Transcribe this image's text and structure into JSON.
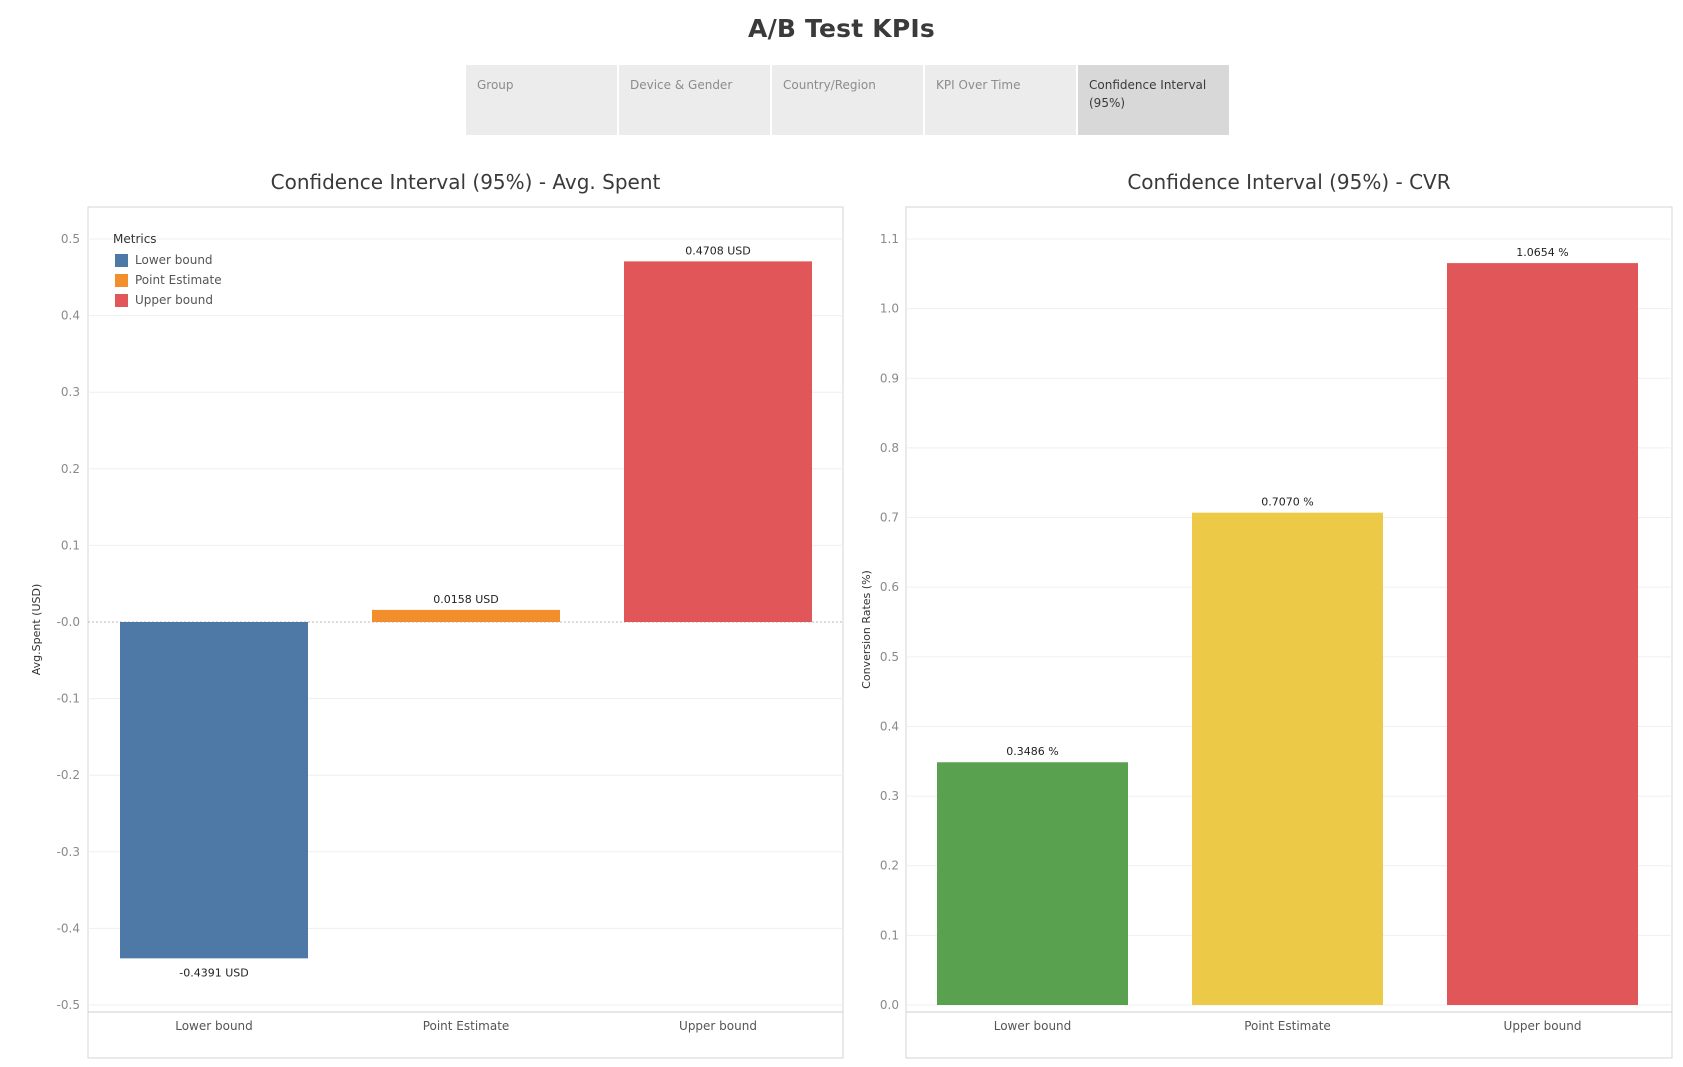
{
  "page": {
    "title": "A/B Test KPIs"
  },
  "tabs": [
    {
      "label": "Group",
      "active": false
    },
    {
      "label": "Device & Gender",
      "active": false
    },
    {
      "label": "Country/Region",
      "active": false
    },
    {
      "label": "KPI Over Time",
      "active": false
    },
    {
      "label": "Confidence Interval (95%)",
      "active": true
    }
  ],
  "legend": {
    "title": "Metrics",
    "items": [
      {
        "label": "Lower bound",
        "color": "#4e79a7"
      },
      {
        "label": "Point Estimate",
        "color": "#f28e2b"
      },
      {
        "label": "Upper bound",
        "color": "#e15759"
      }
    ]
  },
  "chart_data": [
    {
      "type": "bar",
      "title": "Confidence Interval (95%) - Avg. Spent",
      "ylabel": "Avg.Spent (USD)",
      "xlabel": "",
      "categories": [
        "Lower bound",
        "Point Estimate",
        "Upper bound"
      ],
      "values": [
        -0.4391,
        0.0158,
        0.4708
      ],
      "data_labels": [
        "-0.4391 USD",
        "0.0158 USD",
        "0.4708 USD"
      ],
      "colors": [
        "#4e79a7",
        "#f28e2b",
        "#e15759"
      ],
      "ylim": [
        -0.52,
        0.52
      ],
      "yticks": [
        0.5,
        0.4,
        0.3,
        0.2,
        0.1,
        0.0,
        -0.1,
        -0.2,
        -0.3,
        -0.4,
        -0.5
      ],
      "ytick_labels": [
        "0.5",
        "0.4",
        "0.3",
        "0.2",
        "0.1",
        "-0.0",
        "-0.1",
        "-0.2",
        "-0.3",
        "-0.4",
        "-0.5"
      ],
      "grid": true,
      "legend": "top-left"
    },
    {
      "type": "bar",
      "title": "Confidence Interval (95%) - CVR",
      "ylabel": "Conversion Rates (%)",
      "xlabel": "",
      "categories": [
        "Lower bound",
        "Point Estimate",
        "Upper bound"
      ],
      "values": [
        0.3486,
        0.707,
        1.0654
      ],
      "data_labels": [
        "0.3486 %",
        "0.7070 %",
        "1.0654 %"
      ],
      "colors": [
        "#59a14f",
        "#edc948",
        "#e15759"
      ],
      "ylim": [
        0,
        1.12
      ],
      "yticks": [
        0.0,
        0.1,
        0.2,
        0.3,
        0.4,
        0.5,
        0.6,
        0.7,
        0.8,
        0.9,
        1.0,
        1.1
      ],
      "ytick_labels": [
        "0.0",
        "0.1",
        "0.2",
        "0.3",
        "0.4",
        "0.5",
        "0.6",
        "0.7",
        "0.8",
        "0.9",
        "1.0",
        "1.1"
      ],
      "grid": true,
      "legend": "none"
    }
  ]
}
